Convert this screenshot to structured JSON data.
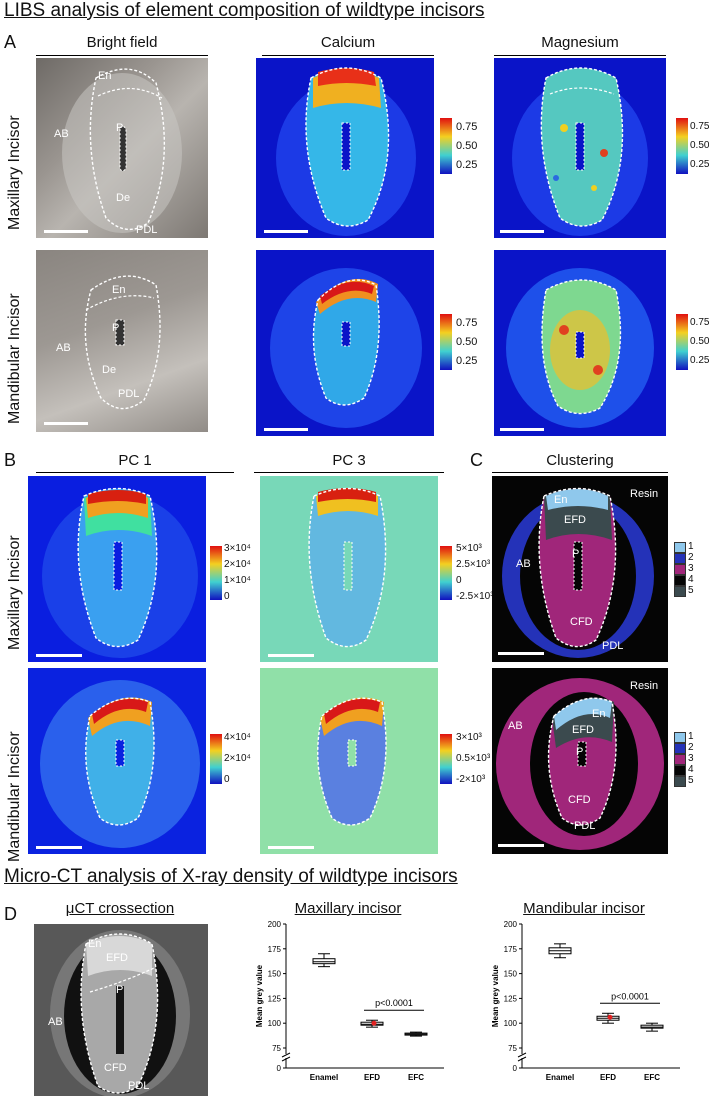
{
  "section_titles": {
    "libs": "LIBS analysis of element composition of wildtype incisors",
    "microct": "Micro-CT analysis of X-ray density of wildtype incisors"
  },
  "panel_letters": {
    "a": "A",
    "b": "B",
    "c": "C",
    "d": "D"
  },
  "columns": {
    "bright_field": "Bright field",
    "calcium": "Calcium",
    "magnesium": "Magnesium",
    "pc1": "PC 1",
    "pc3": "PC 3",
    "clustering": "Clustering"
  },
  "row_labels": {
    "maxillary": "Maxillary Incisor",
    "mandibular": "Mandibular Incisor"
  },
  "tissue_labels": {
    "en": "En",
    "p": "P",
    "ab": "AB",
    "de": "De",
    "pdl": "PDL",
    "efd": "EFD",
    "cfd": "CFD",
    "resin": "Resin"
  },
  "colorbars": {
    "element": [
      "0.75",
      "0.50",
      "0.25"
    ],
    "pc1_max": [
      "3×10⁴",
      "2×10⁴",
      "1×10⁴",
      "0"
    ],
    "pc1_man": [
      "4×10⁴",
      "2×10⁴",
      "0"
    ],
    "pc3_max": [
      "5×10³",
      "2.5×10³",
      "0",
      "-2.5×10³"
    ],
    "pc3_man": [
      "3×10³",
      "0.5×10³",
      "-2×10³"
    ]
  },
  "cluster_legend": {
    "labels": [
      "1",
      "2",
      "3",
      "4",
      "5"
    ],
    "colors": [
      "#8fc8ec",
      "#2432b8",
      "#a0267a",
      "#050505",
      "#3b4a4e"
    ]
  },
  "ct": {
    "title": "μCT crossection"
  },
  "chart_data": [
    {
      "type": "box",
      "title": "Maxillary incisor",
      "ylabel": "Mean grey value",
      "categories": [
        "Enamel",
        "EFD",
        "EFC"
      ],
      "ylim": [
        0,
        200
      ],
      "yticks": [
        "0",
        "75",
        "100",
        "125",
        "150",
        "175",
        "200"
      ],
      "boxes": [
        {
          "min": 157,
          "q1": 160,
          "median": 162,
          "q3": 165,
          "max": 170
        },
        {
          "min": 96,
          "q1": 98,
          "median": 99,
          "q3": 101,
          "max": 103
        },
        {
          "min": 87,
          "q1": 88,
          "median": 89,
          "q3": 90,
          "max": 91
        }
      ],
      "annotation": "p<0.0001"
    },
    {
      "type": "box",
      "title": "Mandibular incisor",
      "ylabel": "Mean grey value",
      "categories": [
        "Enamel",
        "EFD",
        "EFC"
      ],
      "ylim": [
        0,
        200
      ],
      "yticks": [
        "0",
        "75",
        "100",
        "125",
        "150",
        "175",
        "200"
      ],
      "boxes": [
        {
          "min": 166,
          "q1": 170,
          "median": 173,
          "q3": 176,
          "max": 180
        },
        {
          "min": 100,
          "q1": 103,
          "median": 105,
          "q3": 107,
          "max": 110
        },
        {
          "min": 92,
          "q1": 95,
          "median": 96,
          "q3": 98,
          "max": 100
        }
      ],
      "annotation": "p<0.0001"
    }
  ]
}
